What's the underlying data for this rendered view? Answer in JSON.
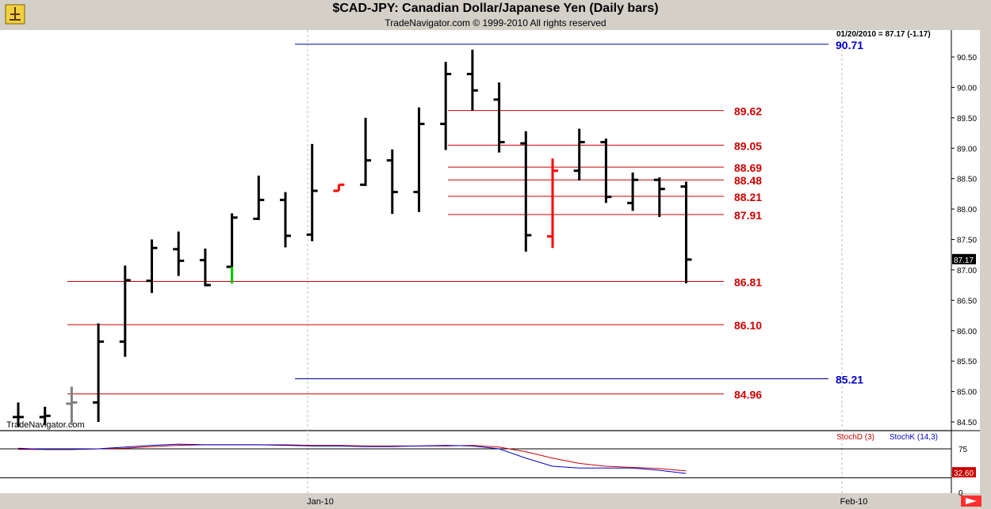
{
  "header": {
    "title": "$CAD-JPY:  Canadian Dollar/Japanese Yen  (Daily bars)",
    "copyright": "TradeNavigator.com © 1999-2010 All rights reserved",
    "quote_readout": "01/20/2010 = 87.17 (-1.17)",
    "watermark": "TradeNavigator.com"
  },
  "colors": {
    "background": "#ffffff",
    "frame": "#d4d0c8",
    "bar": "#000000",
    "bar_up_highlight": "#00cc00",
    "bar_down_highlight": "#ff0000",
    "bar_neutral": "#808080",
    "level_red": "#cc0000",
    "level_blue": "#00008b",
    "stoch_d": "#cc0000",
    "stoch_k": "#0000cc"
  },
  "chart_data": [
    {
      "type": "ohlc",
      "title": "$CAD-JPY:  Canadian Dollar/Japanese Yen  (Daily bars)",
      "y_axis": {
        "min": 84.4,
        "max": 90.75,
        "ticks": [
          84.5,
          85.0,
          85.5,
          86.0,
          86.5,
          87.0,
          87.5,
          88.0,
          88.5,
          89.0,
          89.5,
          90.0,
          90.5
        ],
        "tick_labels": [
          "84.50",
          "85.00",
          "85.50",
          "86.00",
          "86.50",
          "87.00",
          "87.50",
          "88.00",
          "88.50",
          "89.00",
          "89.50",
          "90.00",
          "90.50"
        ]
      },
      "last_price_label": "87.17",
      "x_axis": {
        "labels": [
          "Jan-10",
          "Feb-10"
        ]
      },
      "bars": [
        {
          "o": 84.58,
          "h": 84.82,
          "l": 84.42,
          "c": 84.58,
          "color": "black"
        },
        {
          "o": 84.58,
          "h": 84.75,
          "l": 84.45,
          "c": 84.6,
          "color": "black"
        },
        {
          "o": 84.8,
          "h": 85.08,
          "l": 84.45,
          "c": 84.82,
          "color": "gray"
        },
        {
          "o": 84.82,
          "h": 86.12,
          "l": 84.5,
          "c": 85.82,
          "color": "black"
        },
        {
          "o": 85.82,
          "h": 87.07,
          "l": 85.57,
          "c": 86.83,
          "color": "black"
        },
        {
          "o": 86.82,
          "h": 87.5,
          "l": 86.62,
          "c": 87.36,
          "color": "black"
        },
        {
          "o": 87.34,
          "h": 87.63,
          "l": 86.9,
          "c": 87.15,
          "color": "black"
        },
        {
          "o": 87.16,
          "h": 87.35,
          "l": 86.73,
          "c": 86.75,
          "color": "black"
        },
        {
          "o": 87.05,
          "h": 87.93,
          "l": 86.78,
          "c": 87.86,
          "color": "black",
          "low_segment_color": "green"
        },
        {
          "o": 87.84,
          "h": 88.55,
          "l": 87.82,
          "c": 88.15,
          "color": "black"
        },
        {
          "o": 88.15,
          "h": 88.28,
          "l": 87.37,
          "c": 87.56,
          "color": "black"
        },
        {
          "o": 87.58,
          "h": 89.07,
          "l": 87.47,
          "c": 88.3,
          "color": "black"
        },
        {
          "o": 88.3,
          "h": 88.4,
          "l": 88.3,
          "c": 88.4,
          "color": "red"
        },
        {
          "o": 88.4,
          "h": 89.5,
          "l": 88.38,
          "c": 88.8,
          "color": "black"
        },
        {
          "o": 88.8,
          "h": 88.98,
          "l": 87.92,
          "c": 88.28,
          "color": "black"
        },
        {
          "o": 88.28,
          "h": 89.67,
          "l": 87.95,
          "c": 89.4,
          "color": "black"
        },
        {
          "o": 89.4,
          "h": 90.42,
          "l": 88.97,
          "c": 90.22,
          "color": "black"
        },
        {
          "o": 90.22,
          "h": 90.62,
          "l": 89.62,
          "c": 89.95,
          "color": "black"
        },
        {
          "o": 89.8,
          "h": 90.08,
          "l": 88.93,
          "c": 89.1,
          "color": "black"
        },
        {
          "o": 89.08,
          "h": 89.28,
          "l": 87.3,
          "c": 87.57,
          "color": "black"
        },
        {
          "o": 87.55,
          "h": 88.83,
          "l": 87.36,
          "c": 88.63,
          "color": "red"
        },
        {
          "o": 88.63,
          "h": 89.32,
          "l": 88.47,
          "c": 89.1,
          "color": "black"
        },
        {
          "o": 89.1,
          "h": 89.16,
          "l": 88.1,
          "c": 88.2,
          "color": "black"
        },
        {
          "o": 88.1,
          "h": 88.6,
          "l": 87.97,
          "c": 88.48,
          "color": "black"
        },
        {
          "o": 88.48,
          "h": 88.52,
          "l": 87.87,
          "c": 88.33,
          "color": "black"
        },
        {
          "o": 88.37,
          "h": 88.45,
          "l": 86.78,
          "c": 87.17,
          "color": "black"
        }
      ],
      "levels": [
        {
          "value": 90.71,
          "label": "90.71",
          "color": "blue"
        },
        {
          "value": 89.62,
          "label": "89.62",
          "color": "red"
        },
        {
          "value": 89.05,
          "label": "89.05",
          "color": "red"
        },
        {
          "value": 88.69,
          "label": "88.69",
          "color": "red"
        },
        {
          "value": 88.48,
          "label": "88.48",
          "color": "red"
        },
        {
          "value": 88.21,
          "label": "88.21",
          "color": "red"
        },
        {
          "value": 87.91,
          "label": "87.91",
          "color": "red"
        },
        {
          "value": 86.81,
          "label": "86.81",
          "color": "red"
        },
        {
          "value": 86.1,
          "label": "86.10",
          "color": "red"
        },
        {
          "value": 85.21,
          "label": "85.21",
          "color": "blue"
        },
        {
          "value": 84.96,
          "label": "84.96",
          "color": "red"
        }
      ]
    },
    {
      "type": "line",
      "y_axis": {
        "min": 0,
        "max": 100,
        "ticks": [
          0,
          75
        ],
        "tick_labels": [
          "0",
          "75"
        ]
      },
      "reference_lines": [
        75,
        25
      ],
      "series": [
        {
          "name": "StochD (3)",
          "color": "red",
          "values": [
            74,
            74,
            74,
            75,
            76,
            79,
            81,
            82,
            82,
            82,
            82,
            81,
            81,
            80,
            80,
            80,
            80,
            81,
            78,
            70,
            59,
            50,
            45,
            43,
            41,
            37
          ]
        },
        {
          "name": "StochK (14,3)",
          "color": "blue",
          "values": [
            76,
            74,
            74,
            75,
            78,
            81,
            83,
            82,
            82,
            82,
            81,
            80,
            80,
            79,
            79,
            80,
            81,
            80,
            75,
            59,
            45,
            42,
            42,
            42,
            38,
            32.6
          ]
        }
      ],
      "last_value_label": "32.60"
    }
  ]
}
